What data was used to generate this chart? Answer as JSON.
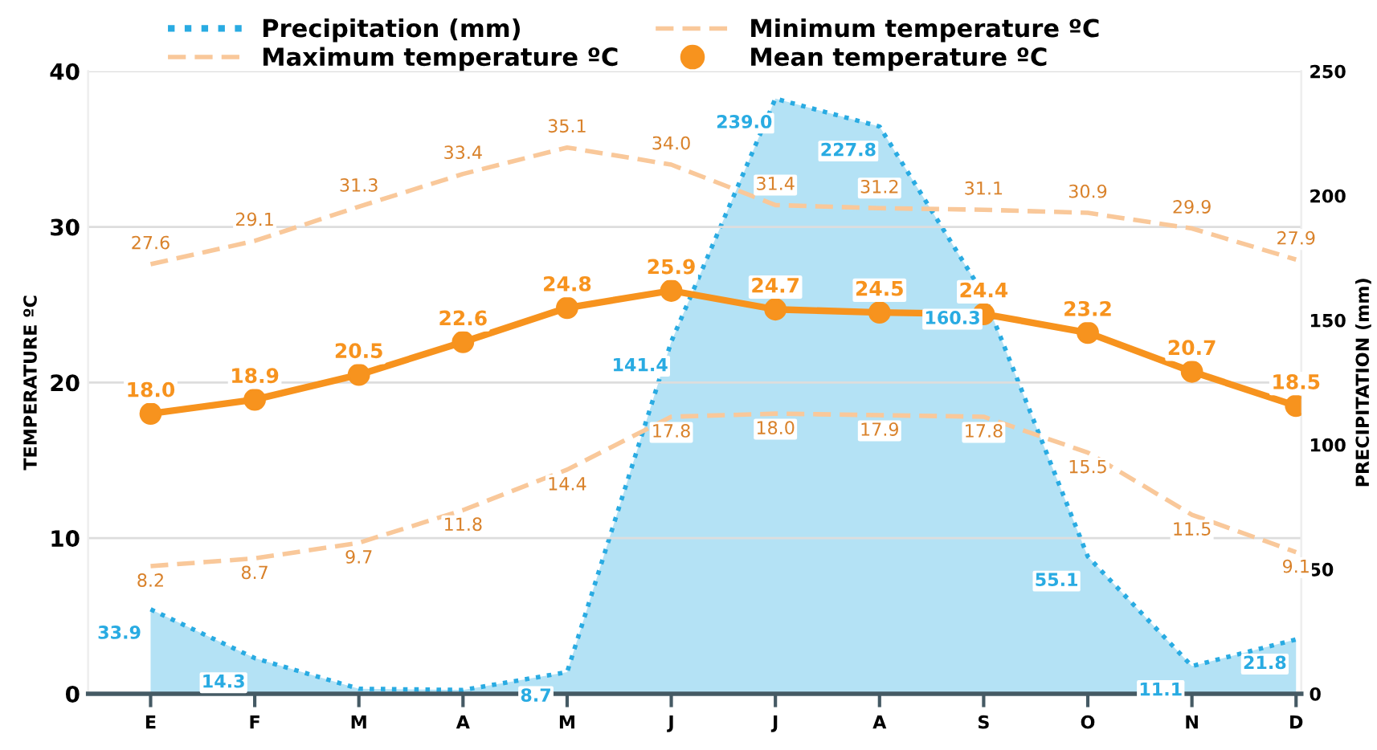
{
  "chart_data": {
    "type": "line",
    "xlabel": null,
    "ylabel": "TEMPERATURE ºC",
    "y2label": "PRECIPITATION (mm)",
    "categories": [
      "E",
      "F",
      "M",
      "A",
      "M",
      "J",
      "J",
      "A",
      "S",
      "O",
      "N",
      "D"
    ],
    "ylim": [
      0,
      40
    ],
    "yticks": [
      0,
      10,
      20,
      30,
      40
    ],
    "y2lim": [
      0,
      250
    ],
    "y2ticks": [
      0,
      50,
      100,
      150,
      200,
      250
    ],
    "grid": "y",
    "legend": "top",
    "series": [
      {
        "name": "Precipitation (mm)",
        "type": "area",
        "axis": "y2",
        "color": "#29abe2",
        "line_style": "dotted",
        "marker": "none",
        "values": [
          33.9,
          14.3,
          2,
          1.5,
          8.7,
          141.4,
          239.0,
          227.8,
          160.3,
          55.1,
          11.1,
          21.8
        ],
        "value_labels": [
          "33.9",
          "14.3",
          null,
          null,
          "8.7",
          "141.4",
          "239.0",
          "227.8",
          "160.3",
          "55.1",
          "11.1",
          "21.8"
        ]
      },
      {
        "name": "Minimum temperature ºC",
        "type": "line",
        "color": "#f9c89a",
        "line_style": "dashed",
        "marker": "none",
        "values": [
          8.2,
          8.7,
          9.7,
          11.8,
          14.4,
          17.8,
          18.0,
          17.9,
          17.8,
          15.5,
          11.5,
          9.1
        ],
        "value_labels": [
          "8.2",
          "8.7",
          "9.7",
          "11.8",
          "14.4",
          "17.8",
          "18.0",
          "17.9",
          "17.8",
          "15.5",
          "11.5",
          "9.1"
        ]
      },
      {
        "name": "Maximum temperature ºC",
        "type": "line",
        "color": "#f9c89a",
        "line_style": "dashed",
        "marker": "none",
        "values": [
          27.6,
          29.1,
          31.3,
          33.4,
          35.1,
          34.0,
          31.4,
          31.2,
          31.1,
          30.9,
          29.9,
          27.9
        ],
        "value_labels": [
          "27.6",
          "29.1",
          "31.3",
          "33.4",
          "35.1",
          "34.0",
          "31.4",
          "31.2",
          "31.1",
          "30.9",
          "29.9",
          "27.9"
        ]
      },
      {
        "name": "Mean temperature ºC",
        "type": "line",
        "color": "#f7931e",
        "line_style": "solid",
        "marker": "circle",
        "values": [
          18.0,
          18.9,
          20.5,
          22.6,
          24.8,
          25.9,
          24.7,
          24.5,
          24.4,
          23.2,
          20.7,
          18.5
        ],
        "value_labels": [
          "18.0",
          "18.9",
          "20.5",
          "22.6",
          "24.8",
          "25.9",
          "24.7",
          "24.5",
          "24.4",
          "23.2",
          "20.7",
          "18.5"
        ]
      }
    ]
  }
}
